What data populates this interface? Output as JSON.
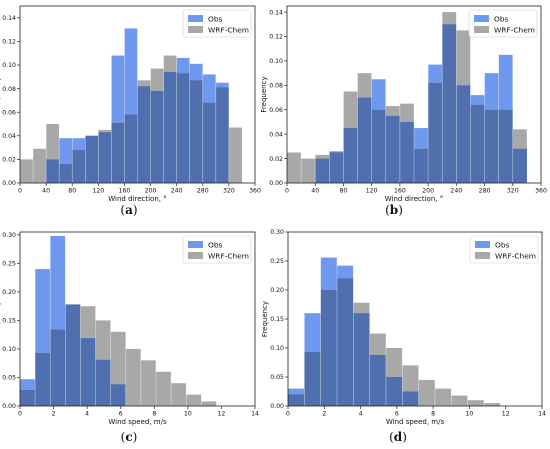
{
  "colors": {
    "obs": "#6f99ee",
    "wrf": "#a8a8a8",
    "overlap": "#4f6fae",
    "axis": "#222222"
  },
  "captions": [
    {
      "open": "(",
      "letter": "a",
      "close": ")"
    },
    {
      "open": "(",
      "letter": "b",
      "close": ")"
    },
    {
      "open": "(",
      "letter": "c",
      "close": ")"
    },
    {
      "open": "(",
      "letter": "d",
      "close": ")"
    }
  ],
  "chart_data": [
    {
      "type": "bar",
      "panel": "a",
      "xlabel": "Wind direction, °",
      "ylabel": "Frequency",
      "xlim": [
        0,
        360
      ],
      "ylim": [
        0,
        0.15
      ],
      "xticks": [
        0,
        40,
        80,
        120,
        160,
        200,
        240,
        280,
        320,
        360
      ],
      "yticks": [
        0.0,
        0.02,
        0.04,
        0.06,
        0.08,
        0.1,
        0.12,
        0.14
      ],
      "ytick_labels": [
        "0.00",
        "0.02",
        "0.04",
        "0.06",
        "0.08",
        "0.10",
        "0.12",
        "0.14"
      ],
      "legend": {
        "position": "top-right",
        "entries": [
          "Obs",
          "WRF-Chem"
        ]
      },
      "bin_edges": [
        0,
        20,
        40,
        60,
        80,
        100,
        120,
        140,
        160,
        180,
        200,
        220,
        240,
        260,
        280,
        300,
        320,
        340
      ],
      "series": [
        {
          "name": "Obs",
          "values": [
            0.0,
            0.0,
            0.02,
            0.038,
            0.038,
            0.04,
            0.043,
            0.108,
            0.131,
            0.082,
            0.078,
            0.094,
            0.106,
            0.101,
            0.092,
            0.085,
            0.0
          ]
        },
        {
          "name": "WRF-Chem",
          "values": [
            0.02,
            0.029,
            0.05,
            0.016,
            0.028,
            0.04,
            0.045,
            0.051,
            0.058,
            0.087,
            0.097,
            0.108,
            0.093,
            0.087,
            0.068,
            0.081,
            0.047
          ]
        }
      ]
    },
    {
      "type": "bar",
      "panel": "b",
      "xlabel": "Wind direction, °",
      "ylabel": "Frequency",
      "xlim": [
        0,
        360
      ],
      "ylim": [
        0,
        0.145
      ],
      "xticks": [
        0,
        40,
        80,
        120,
        160,
        200,
        240,
        280,
        320,
        360
      ],
      "yticks": [
        0.0,
        0.02,
        0.04,
        0.06,
        0.08,
        0.1,
        0.12,
        0.14
      ],
      "ytick_labels": [
        "0.00",
        "0.02",
        "0.04",
        "0.06",
        "0.08",
        "0.10",
        "0.12",
        "0.14"
      ],
      "legend": {
        "position": "top-right",
        "entries": [
          "Obs",
          "WRF-Chem"
        ]
      },
      "bin_edges": [
        0,
        20,
        40,
        60,
        80,
        100,
        120,
        140,
        160,
        180,
        200,
        220,
        240,
        260,
        280,
        300,
        320,
        340
      ],
      "series": [
        {
          "name": "Obs",
          "values": [
            0.0,
            0.0,
            0.02,
            0.026,
            0.045,
            0.07,
            0.085,
            0.055,
            0.05,
            0.045,
            0.097,
            0.13,
            0.08,
            0.072,
            0.09,
            0.105,
            0.028
          ]
        },
        {
          "name": "WRF-Chem",
          "values": [
            0.025,
            0.02,
            0.023,
            0.025,
            0.075,
            0.09,
            0.06,
            0.063,
            0.065,
            0.028,
            0.082,
            0.14,
            0.125,
            0.064,
            0.06,
            0.06,
            0.044
          ]
        }
      ]
    },
    {
      "type": "bar",
      "panel": "c",
      "xlabel": "Wind speed, m/s",
      "ylabel": "Frequency",
      "xlim": [
        0,
        14
      ],
      "ylim": [
        0,
        0.305
      ],
      "xticks": [
        0,
        2,
        4,
        6,
        8,
        10,
        12,
        14
      ],
      "yticks": [
        0.0,
        0.05,
        0.1,
        0.15,
        0.2,
        0.25,
        0.3
      ],
      "ytick_labels": [
        "0.00",
        "0.05",
        "0.10",
        "0.15",
        "0.20",
        "0.25",
        "0.30"
      ],
      "legend": {
        "position": "top-right",
        "entries": [
          "Obs",
          "WRF-Chem"
        ]
      },
      "bin_edges": [
        0,
        0.9,
        1.8,
        2.7,
        3.6,
        4.5,
        5.4,
        6.3,
        7.2,
        8.1,
        9.0,
        9.9,
        10.8,
        11.7,
        12.6
      ],
      "series": [
        {
          "name": "Obs",
          "values": [
            0.047,
            0.24,
            0.298,
            0.178,
            0.119,
            0.081,
            0.038,
            0.0,
            0.0,
            0.0,
            0.0,
            0.0,
            0.0,
            0.0
          ]
        },
        {
          "name": "WRF-Chem",
          "values": [
            0.028,
            0.093,
            0.134,
            0.178,
            0.175,
            0.15,
            0.13,
            0.1,
            0.08,
            0.06,
            0.04,
            0.02,
            0.008,
            0.0
          ]
        }
      ]
    },
    {
      "type": "bar",
      "panel": "d",
      "xlabel": "Wind speed, m/s",
      "ylabel": "Frequency",
      "xlim": [
        0,
        14
      ],
      "ylim": [
        0,
        0.3
      ],
      "xticks": [
        0,
        2,
        4,
        6,
        8,
        10,
        12,
        14
      ],
      "yticks": [
        0.0,
        0.05,
        0.1,
        0.15,
        0.2,
        0.25,
        0.3
      ],
      "ytick_labels": [
        "0.00",
        "0.05",
        "0.10",
        "0.15",
        "0.20",
        "0.25",
        "0.30"
      ],
      "legend": {
        "position": "top-right",
        "entries": [
          "Obs",
          "WRF-Chem"
        ]
      },
      "bin_edges": [
        0,
        0.9,
        1.8,
        2.7,
        3.6,
        4.5,
        5.4,
        6.3,
        7.2,
        8.1,
        9.0,
        9.9,
        10.8,
        11.7,
        12.6
      ],
      "series": [
        {
          "name": "Obs",
          "values": [
            0.03,
            0.16,
            0.256,
            0.242,
            0.16,
            0.088,
            0.05,
            0.025,
            0.0,
            0.0,
            0.0,
            0.0,
            0.0,
            0.0
          ]
        },
        {
          "name": "WRF-Chem",
          "values": [
            0.02,
            0.093,
            0.2,
            0.22,
            0.178,
            0.125,
            0.1,
            0.07,
            0.045,
            0.03,
            0.018,
            0.01,
            0.005,
            0.0
          ]
        }
      ]
    }
  ]
}
